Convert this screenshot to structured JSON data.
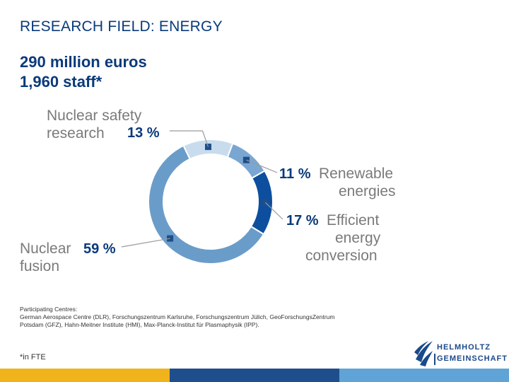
{
  "slide": {
    "title": "RESEARCH FIELD: ENERGY",
    "headline_line1": "290 million euros",
    "headline_line2": "1,960 staff*"
  },
  "chart_data": {
    "type": "pie",
    "variant": "donut",
    "slices": [
      {
        "label_line1": "Nuclear safety",
        "label_line2": "research",
        "value": 13,
        "value_text": "13 %",
        "color": "#c8dced"
      },
      {
        "label_line1": "Renewable",
        "label_line2": "energies",
        "value": 11,
        "value_text": "11 %",
        "color": "#7aa6d2"
      },
      {
        "label_line1": "Efficient",
        "label_line2": "energy",
        "label_line3": "conversion",
        "value": 17,
        "value_text": "17 %",
        "color": "#0d4f9e"
      },
      {
        "label_line1": "Nuclear",
        "label_line2": "fusion",
        "value": 59,
        "value_text": "59 %",
        "color": "#6a9cc9"
      }
    ],
    "marker_color": "#1f4e8c"
  },
  "participating": {
    "heading": "Participating Centres:",
    "line1": "German Aerospace Centre (DLR), Forschungszentrum Karlsruhe, Forschungszentrum Jülich, GeoForschungsZentrum",
    "line2": "Potsdam (GFZ), Hahn-Meitner Institute (HMI), Max-Planck-Institut für Plasmaphysik (IPP)."
  },
  "footnote": "*in FTE",
  "logo": {
    "word1": "HELMHOLTZ",
    "word2": "GEMEINSCHAFT",
    "color": "#1a4a8a"
  },
  "bottom_bar_colors": [
    "#f0b31b",
    "#1f4e8c",
    "#5fa3d7"
  ]
}
